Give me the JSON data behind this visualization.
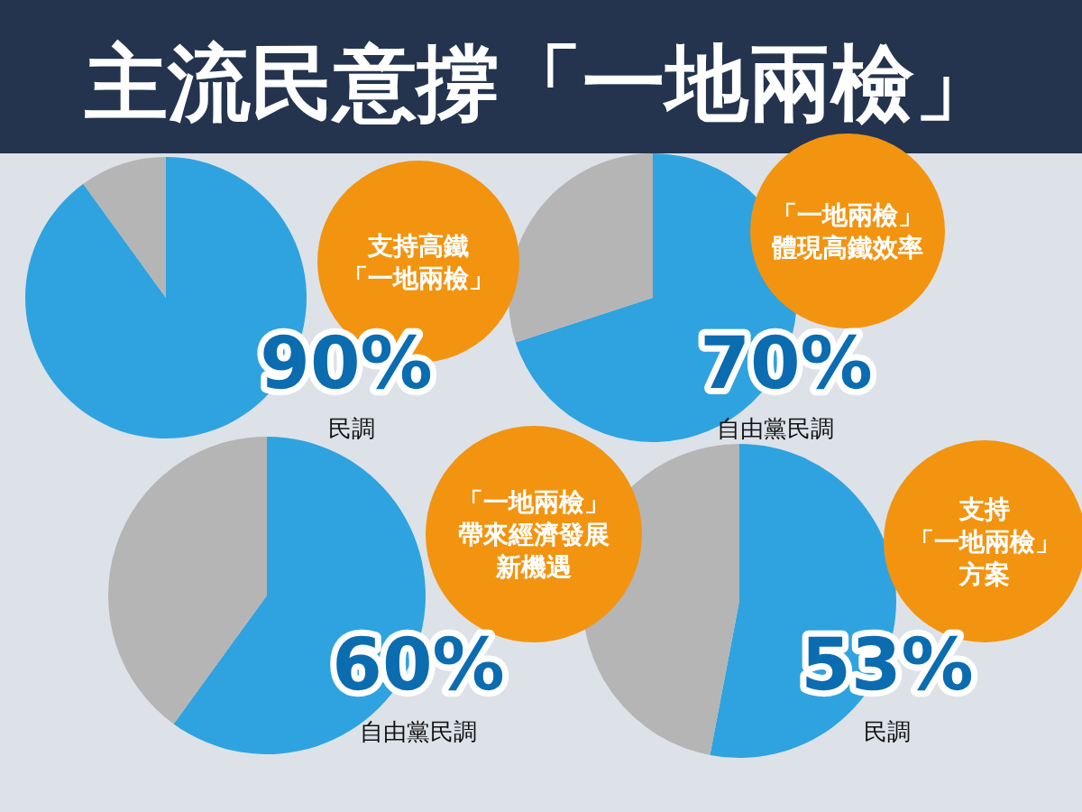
{
  "chart_data": [
    {
      "type": "pie",
      "title": "主流民意撐「一地兩檢」",
      "subtitle": "支持高鐵「一地兩檢」",
      "categories": [
        null,
        null
      ],
      "values": [
        90,
        10
      ],
      "colors": [
        "#2ea3e0",
        "#b5b5b5"
      ],
      "value_labels": [
        "90%",
        null
      ],
      "annotations": [
        "民調"
      ]
    },
    {
      "type": "pie",
      "subtitle": "「一地兩檢」體現高鐵效率",
      "categories": [
        null,
        null
      ],
      "values": [
        70,
        30
      ],
      "colors": [
        "#2ea3e0",
        "#b5b5b5"
      ],
      "value_labels": [
        "70%",
        null
      ],
      "annotations": [
        "自由黨民調"
      ]
    },
    {
      "type": "pie",
      "subtitle": "「一地兩檢」帶來經濟發展新機遇",
      "categories": [
        null,
        null
      ],
      "values": [
        60,
        40
      ],
      "colors": [
        "#2ea3e0",
        "#b5b5b5"
      ],
      "value_labels": [
        "60%",
        null
      ],
      "annotations": [
        "自由黨民調"
      ]
    },
    {
      "type": "pie",
      "subtitle": "支持「一地兩檢」方案",
      "categories": [
        null,
        null
      ],
      "values": [
        53,
        47
      ],
      "colors": [
        "#2ea3e0",
        "#b5b5b5"
      ],
      "value_labels": [
        "53%",
        null
      ],
      "annotations": [
        "民調"
      ]
    }
  ]
}
